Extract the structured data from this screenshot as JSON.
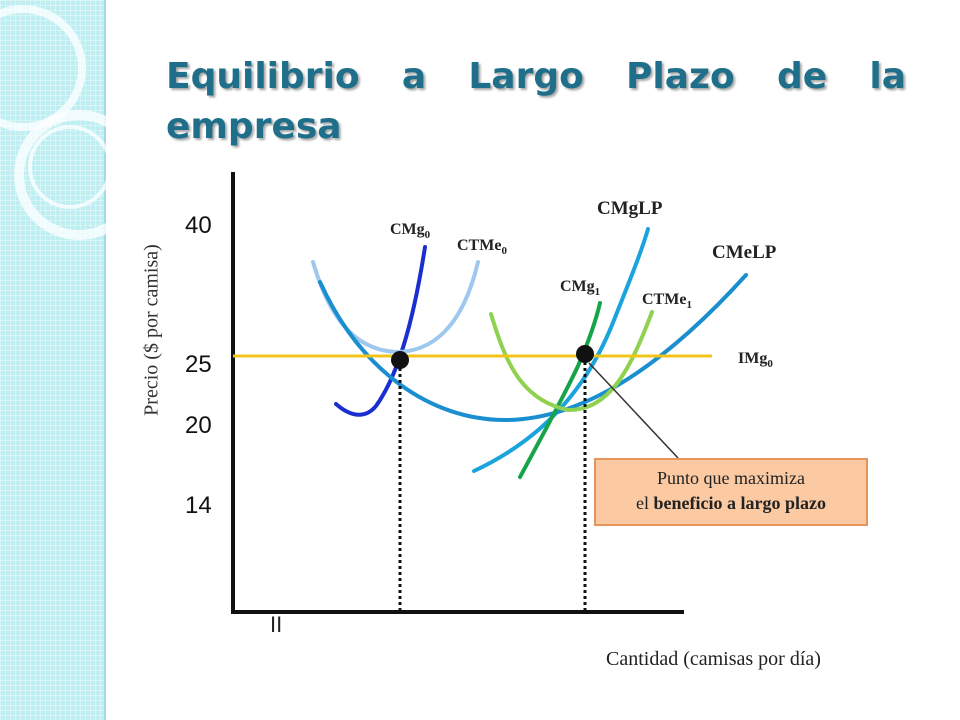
{
  "slide": {
    "title": "Equilibrio a Largo Plazo de la empresa"
  },
  "callout": {
    "line1": "Punto que maximiza",
    "line2_prefix": "el ",
    "line2_bold": "beneficio a largo plazo"
  },
  "chart_data": {
    "type": "line",
    "title": "Equilibrio a Largo Plazo de la empresa",
    "xlabel": "Cantidad (camisas por día)",
    "ylabel": "Precio ($ por camisa)",
    "y_ticks": [
      "40",
      "25",
      "20",
      "14"
    ],
    "price_level": 25,
    "axis_break_mark": "II",
    "series": [
      {
        "name": "CMg",
        "sub": "0",
        "color": "#1a2fd0"
      },
      {
        "name": "CTMe",
        "sub": "0",
        "color": "#9fc8ef"
      },
      {
        "name": "CMgLP",
        "sub": "",
        "color": "#1aa3dd"
      },
      {
        "name": "CMeLP",
        "sub": "",
        "color": "#1a8fcf"
      },
      {
        "name": "CMg",
        "sub": "1",
        "color": "#17a34a"
      },
      {
        "name": "CTMe",
        "sub": "1",
        "color": "#8fd150"
      },
      {
        "name": "IMg",
        "sub": "0",
        "color": "#f2c417"
      }
    ],
    "equilibrium_points": 2
  }
}
